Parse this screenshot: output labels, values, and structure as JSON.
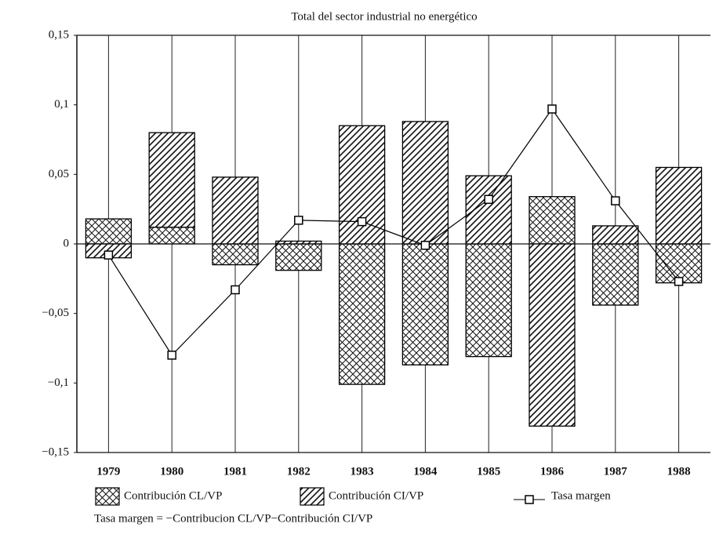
{
  "chart_data": {
    "type": "bar",
    "stacked": true,
    "title": "Total del sector industrial no energético",
    "categories": [
      "1979",
      "1980",
      "1981",
      "1982",
      "1983",
      "1984",
      "1985",
      "1986",
      "1987",
      "1988"
    ],
    "series": [
      {
        "name": "Contribución CL/VP",
        "type": "bar",
        "hatch": "crosshatch",
        "color": "#000000",
        "values": [
          0.018,
          0.012,
          -0.015,
          -0.019,
          -0.101,
          -0.087,
          -0.081,
          0.034,
          -0.044,
          -0.028
        ]
      },
      {
        "name": "Contribución CI/VP",
        "type": "bar",
        "hatch": "diagonal",
        "color": "#000000",
        "values": [
          -0.01,
          0.068,
          0.048,
          0.002,
          0.085,
          0.088,
          0.049,
          -0.131,
          0.013,
          0.055
        ]
      },
      {
        "name": "Tasa margen",
        "type": "line",
        "marker": "square",
        "color": "#000000",
        "values": [
          -0.008,
          -0.08,
          -0.033,
          0.017,
          0.016,
          -0.001,
          0.032,
          0.097,
          0.031,
          -0.027
        ]
      }
    ],
    "ylim": [
      -0.15,
      0.15
    ],
    "yticks": [
      {
        "value": 0.15,
        "label": "0,15"
      },
      {
        "value": 0.1,
        "label": "0,1"
      },
      {
        "value": 0.05,
        "label": "0,05"
      },
      0,
      {
        "value": -0.05,
        "label": "−0,05"
      },
      {
        "value": -0.1,
        "label": "−0,1"
      },
      {
        "value": -0.15,
        "label": "−0,15"
      }
    ],
    "category_grid": true,
    "legend": "bottom",
    "note": "Tasa margen = −Contribucion CL/VP−Contribución CI/VP"
  }
}
